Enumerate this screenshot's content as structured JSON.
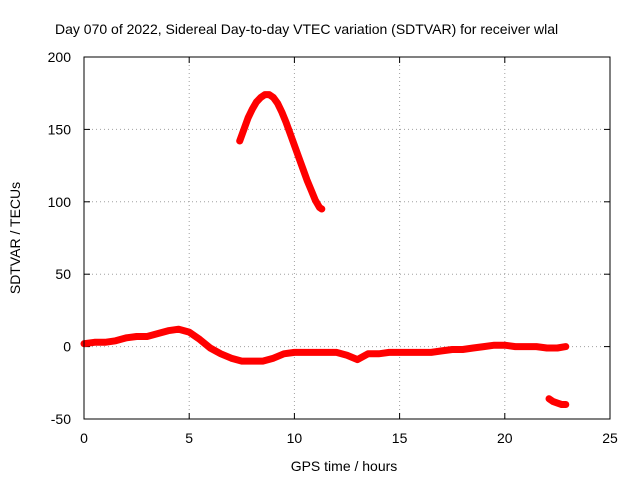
{
  "chart_data": {
    "type": "line",
    "title": "Day 070 of 2022, Sidereal Day-to-day VTEC variation (SDTVAR) for receiver wlal",
    "xlabel": "GPS time / hours",
    "ylabel": "SDTVAR / TECUs",
    "xlim": [
      0,
      25
    ],
    "ylim": [
      -50,
      200
    ],
    "xticks": [
      0,
      5,
      10,
      15,
      20,
      25
    ],
    "yticks": [
      -50,
      0,
      50,
      100,
      150,
      200
    ],
    "xtick_labels": [
      "0",
      "5",
      "10",
      "15",
      "20",
      "25"
    ],
    "ytick_labels": [
      "-50",
      "0",
      "50",
      "100",
      "150",
      "200"
    ],
    "grid": true,
    "series_color": "#ff0000",
    "series": [
      {
        "name": "arc-main",
        "x": [
          0.0,
          0.5,
          1.0,
          1.5,
          2.0,
          2.5,
          3.0,
          3.5,
          4.0,
          4.5,
          5.0,
          5.5,
          6.0,
          6.5,
          7.0,
          7.5,
          8.0,
          8.5,
          9.0,
          9.5,
          10.0,
          10.5,
          11.0,
          11.5,
          12.0,
          12.5,
          13.0,
          13.5,
          14.0,
          14.5,
          15.0,
          15.5,
          16.0,
          16.5,
          17.0,
          17.5,
          18.0,
          18.5,
          19.0,
          19.5,
          20.0,
          20.5,
          21.0,
          21.5,
          22.0,
          22.5,
          22.9
        ],
        "y": [
          2,
          3,
          3,
          4,
          6,
          7,
          7,
          9,
          11,
          12,
          10,
          5,
          -1,
          -5,
          -8,
          -10,
          -10,
          -10,
          -8,
          -5,
          -4,
          -4,
          -4,
          -4,
          -4,
          -6,
          -9,
          -5,
          -5,
          -4,
          -4,
          -4,
          -4,
          -4,
          -3,
          -2,
          -2,
          -1,
          0,
          1,
          1,
          0,
          0,
          0,
          -1,
          -1,
          0
        ]
      },
      {
        "name": "arc-high",
        "x": [
          7.4,
          7.6,
          7.8,
          8.0,
          8.2,
          8.4,
          8.6,
          8.8,
          9.0,
          9.2,
          9.4,
          9.6,
          9.8,
          10.0,
          10.2,
          10.4,
          10.6,
          10.8,
          11.0,
          11.2,
          11.3
        ],
        "y": [
          142,
          150,
          158,
          164,
          169,
          172,
          174,
          174,
          172,
          168,
          162,
          155,
          147,
          139,
          131,
          123,
          115,
          108,
          101,
          96,
          95
        ]
      },
      {
        "name": "arc-low",
        "x": [
          22.1,
          22.3,
          22.5,
          22.7,
          22.9
        ],
        "y": [
          -36,
          -38,
          -39,
          -40,
          -40
        ]
      }
    ]
  }
}
